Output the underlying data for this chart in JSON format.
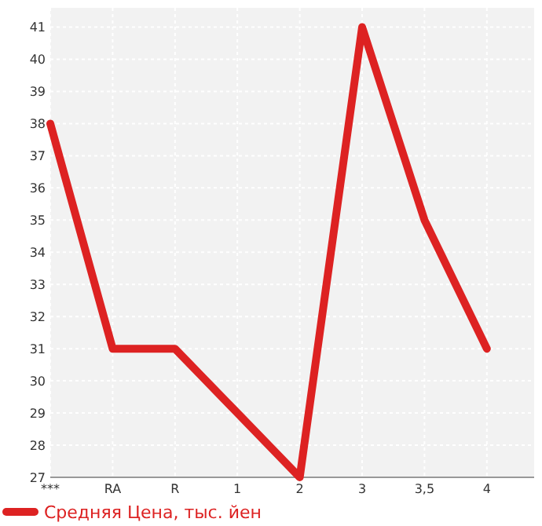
{
  "chart_data": {
    "type": "line",
    "categories": [
      "***",
      "RA",
      "R",
      "1",
      "2",
      "3",
      "3,5",
      "4"
    ],
    "series": [
      {
        "name": "Средняя Цена, тыс. йен",
        "color": "#dd2222",
        "values": [
          38,
          31,
          31,
          29,
          27,
          41,
          35,
          31
        ]
      }
    ],
    "ylim": [
      27,
      41.6
    ],
    "yticks": [
      27,
      28,
      29,
      30,
      31,
      32,
      33,
      34,
      35,
      36,
      37,
      38,
      39,
      40,
      41
    ],
    "grid": true,
    "legend": "bottom",
    "marker": "none",
    "line_style": "solid"
  }
}
